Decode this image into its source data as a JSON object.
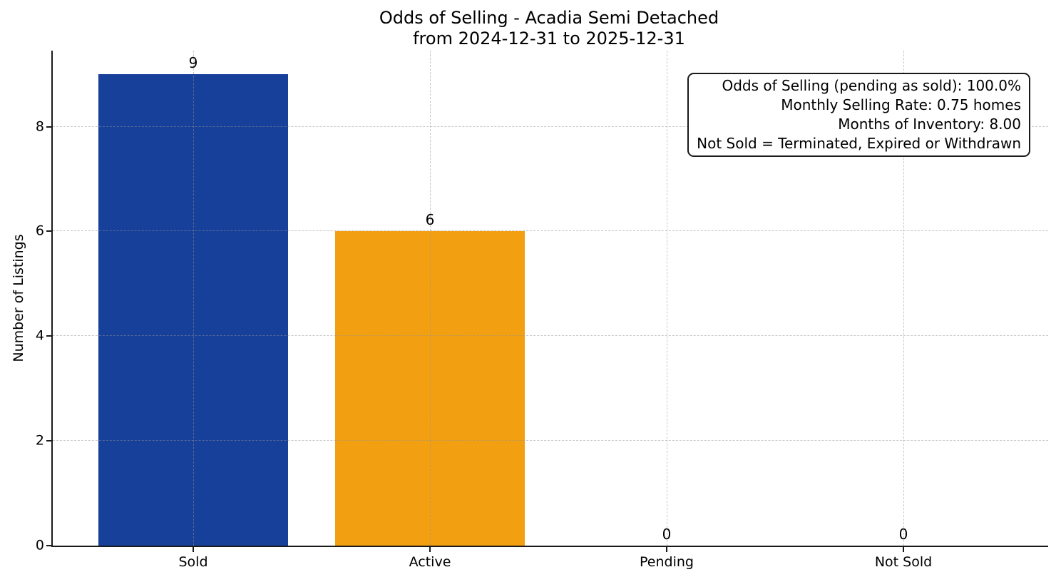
{
  "chart_data": {
    "type": "bar",
    "title_line1": "Odds of Selling - Acadia Semi Detached",
    "title_line2": "from 2024-12-31 to 2025-12-31",
    "ylabel": "Number of Listings",
    "xlabel": "",
    "categories": [
      "Sold",
      "Active",
      "Pending",
      "Not Sold"
    ],
    "values": [
      9,
      6,
      0,
      0
    ],
    "value_labels": [
      "9",
      "6",
      "0",
      "0"
    ],
    "bar_colors": [
      "#17409A",
      "#F2A012",
      null,
      null
    ],
    "yticks": [
      0,
      2,
      4,
      6,
      8
    ],
    "ylim": [
      0,
      9.45
    ],
    "grid": "both-dashed",
    "legend_position": "none",
    "annotation_lines": [
      "Odds of Selling (pending as sold): 100.0%",
      "Monthly Selling Rate: 0.75 homes",
      "Months of Inventory: 8.00",
      "Not Sold = Terminated, Expired or Withdrawn"
    ]
  }
}
